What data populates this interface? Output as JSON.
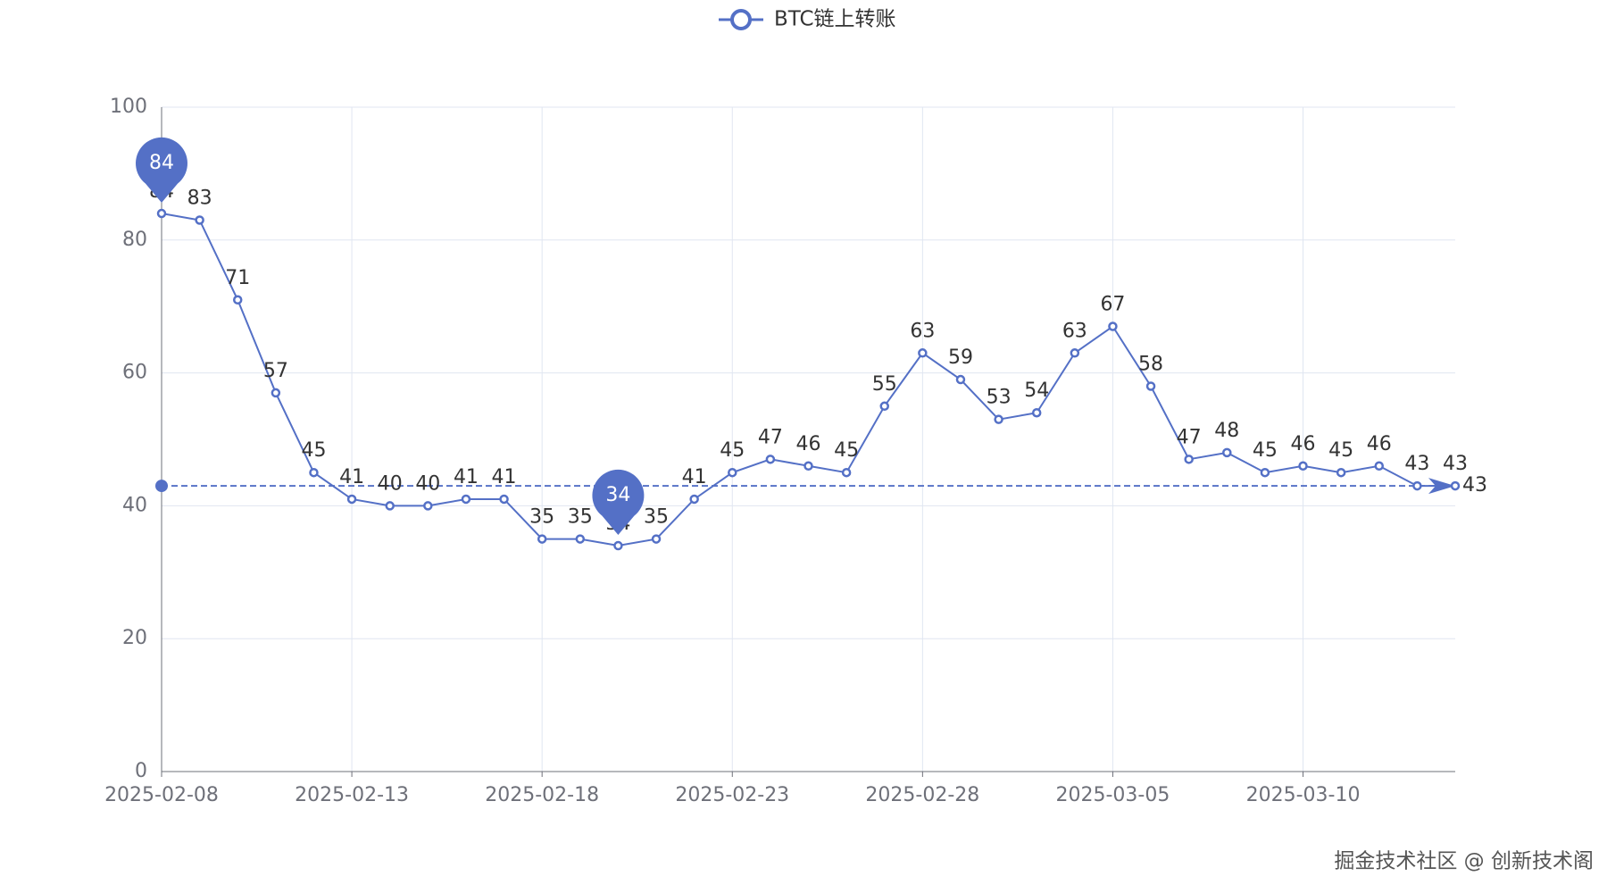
{
  "chart_data": {
    "type": "line",
    "categories": [
      "2025-02-08",
      null,
      null,
      null,
      null,
      "2025-02-13",
      null,
      null,
      null,
      null,
      "2025-02-18",
      null,
      null,
      null,
      null,
      "2025-02-23",
      null,
      null,
      null,
      null,
      "2025-02-28",
      null,
      null,
      null,
      null,
      "2025-03-05",
      null,
      null,
      null,
      null,
      "2025-03-10",
      null,
      null,
      null,
      null
    ],
    "series": [
      {
        "name": "BTC链上转账",
        "color": "#5470c6",
        "values": [
          84,
          83,
          71,
          57,
          45,
          41,
          40,
          40,
          41,
          41,
          35,
          35,
          34,
          35,
          41,
          45,
          47,
          46,
          45,
          55,
          63,
          59,
          53,
          54,
          63,
          67,
          58,
          47,
          48,
          45,
          46,
          45,
          46,
          43,
          43
        ]
      }
    ],
    "ylim": [
      0,
      100
    ],
    "yticks": [
      0,
      20,
      40,
      60,
      80,
      100
    ],
    "grid": true,
    "mark_line": 43,
    "watermark": "掘金技术社区 @ 创新技术阁"
  }
}
